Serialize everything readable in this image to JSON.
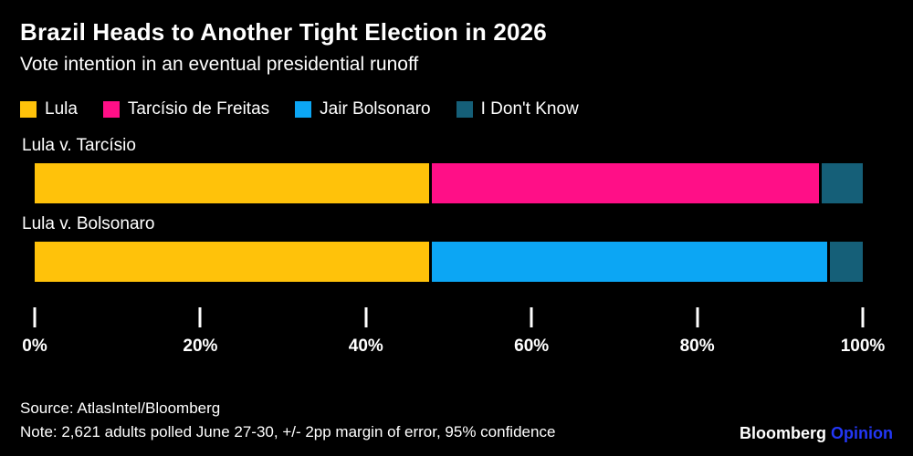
{
  "header": {
    "title": "Brazil Heads to Another Tight Election in 2026",
    "subtitle": "Vote intention in an eventual presidential runoff"
  },
  "chart_data": {
    "type": "bar",
    "orientation": "horizontal",
    "stacked": true,
    "title": "Brazil Heads to Another Tight Election in 2026",
    "subtitle": "Vote intention in an eventual presidential runoff",
    "categories": [
      "Lula v. Tarcísio",
      "Lula v. Bolsonaro"
    ],
    "series": [
      {
        "name": "Lula",
        "color": "#FFC20A",
        "values": [
          48,
          48
        ]
      },
      {
        "name": "Tarcísio de Freitas",
        "color": "#FF0F87",
        "values": [
          47,
          0
        ]
      },
      {
        "name": "Jair Bolsonaro",
        "color": "#0CA6F4",
        "values": [
          0,
          48
        ]
      },
      {
        "name": "I Don't Know",
        "color": "#155F78",
        "values": [
          5,
          4
        ]
      }
    ],
    "xlim": [
      0,
      100
    ],
    "x_ticks": [
      "0%",
      "20%",
      "40%",
      "60%",
      "80%",
      "100%"
    ],
    "legend_position": "top",
    "grid": false,
    "background": "#000000"
  },
  "footer": {
    "source": "Source: AtlasIntel/Bloomberg",
    "note": "Note: 2,621 adults polled June 27-30, +/- 2pp margin of error, 95% confidence",
    "brand": "Bloomberg",
    "brand_suffix": "Opinion"
  }
}
